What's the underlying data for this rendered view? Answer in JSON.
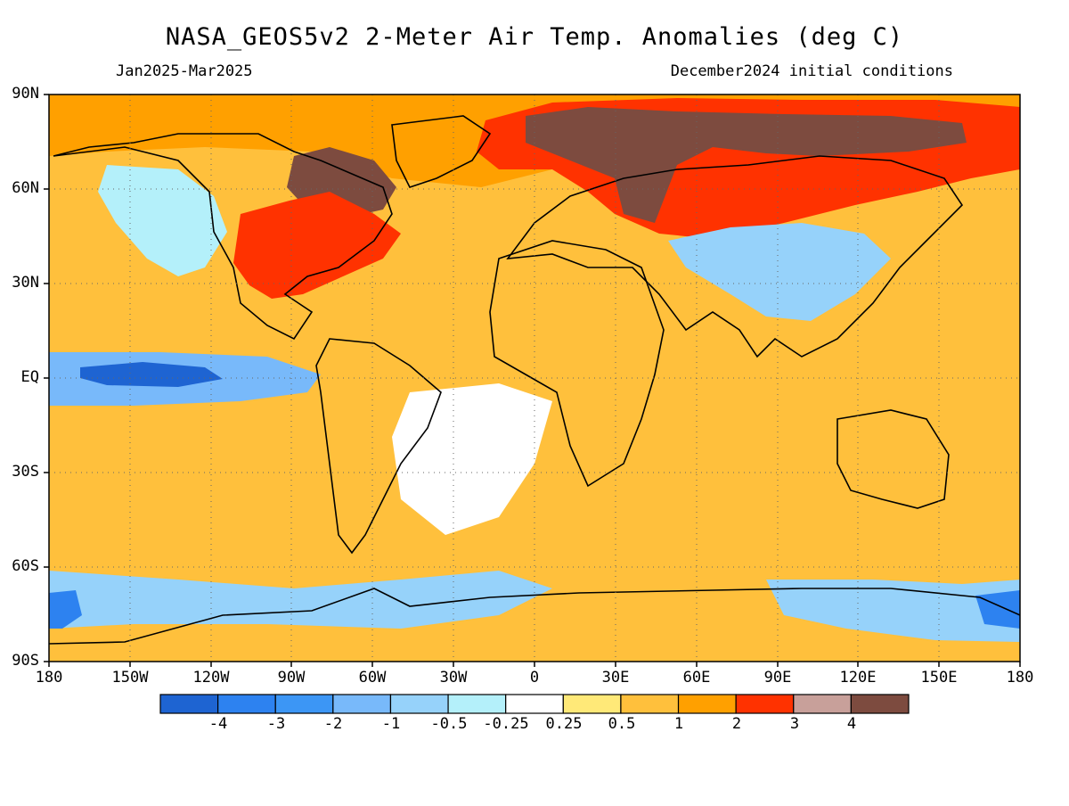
{
  "title": "NASA_GEOS5v2 2-Meter Air Temp. Anomalies (deg C)",
  "subtitle_left": "Jan2025-Mar2025",
  "subtitle_right": "December2024 initial conditions",
  "lat_labels": [
    "90N",
    "60N",
    "30N",
    "EQ",
    "30S",
    "60S",
    "90S"
  ],
  "lon_labels": [
    "180",
    "150W",
    "120W",
    "90W",
    "60W",
    "30W",
    "0",
    "30E",
    "60E",
    "90E",
    "120E",
    "150E",
    "180"
  ],
  "colorbar": {
    "colors": [
      "#1e64d2",
      "#2d82f0",
      "#3c96f5",
      "#78b9fa",
      "#96d2fa",
      "#b4f0fa",
      "#ffffff",
      "#ffe978",
      "#ffc03c",
      "#ffa000",
      "#ff3200",
      "#c8a09a",
      "#7d4b3f"
    ],
    "labels": [
      "-4",
      "-3",
      "-2",
      "-1",
      "-0.5",
      "-0.25",
      "0.25",
      "0.5",
      "1",
      "2",
      "3",
      "4"
    ]
  },
  "map": {
    "background_color": "#ffc03c",
    "regions": [
      {
        "name": "arctic-warm-band",
        "color": "#ffa000"
      },
      {
        "name": "siberia-hot",
        "color": "#ff3200"
      },
      {
        "name": "siberia-extreme",
        "color": "#7d4b3f"
      },
      {
        "name": "hudson-bay-extreme",
        "color": "#7d4b3f"
      },
      {
        "name": "eastern-us-hot",
        "color": "#ff3200"
      },
      {
        "name": "pacific-cold-tongue",
        "color": "#78b9fa"
      },
      {
        "name": "equatorial-pacific-core",
        "color": "#1e64d2"
      },
      {
        "name": "china-cool",
        "color": "#96d2fa"
      },
      {
        "name": "antarctic-cool",
        "color": "#96d2fa"
      },
      {
        "name": "ross-sea-cold",
        "color": "#2d82f0"
      },
      {
        "name": "south-atlantic-neutral",
        "color": "#ffffff"
      },
      {
        "name": "western-canada-cool",
        "color": "#b4f0fa"
      }
    ]
  }
}
